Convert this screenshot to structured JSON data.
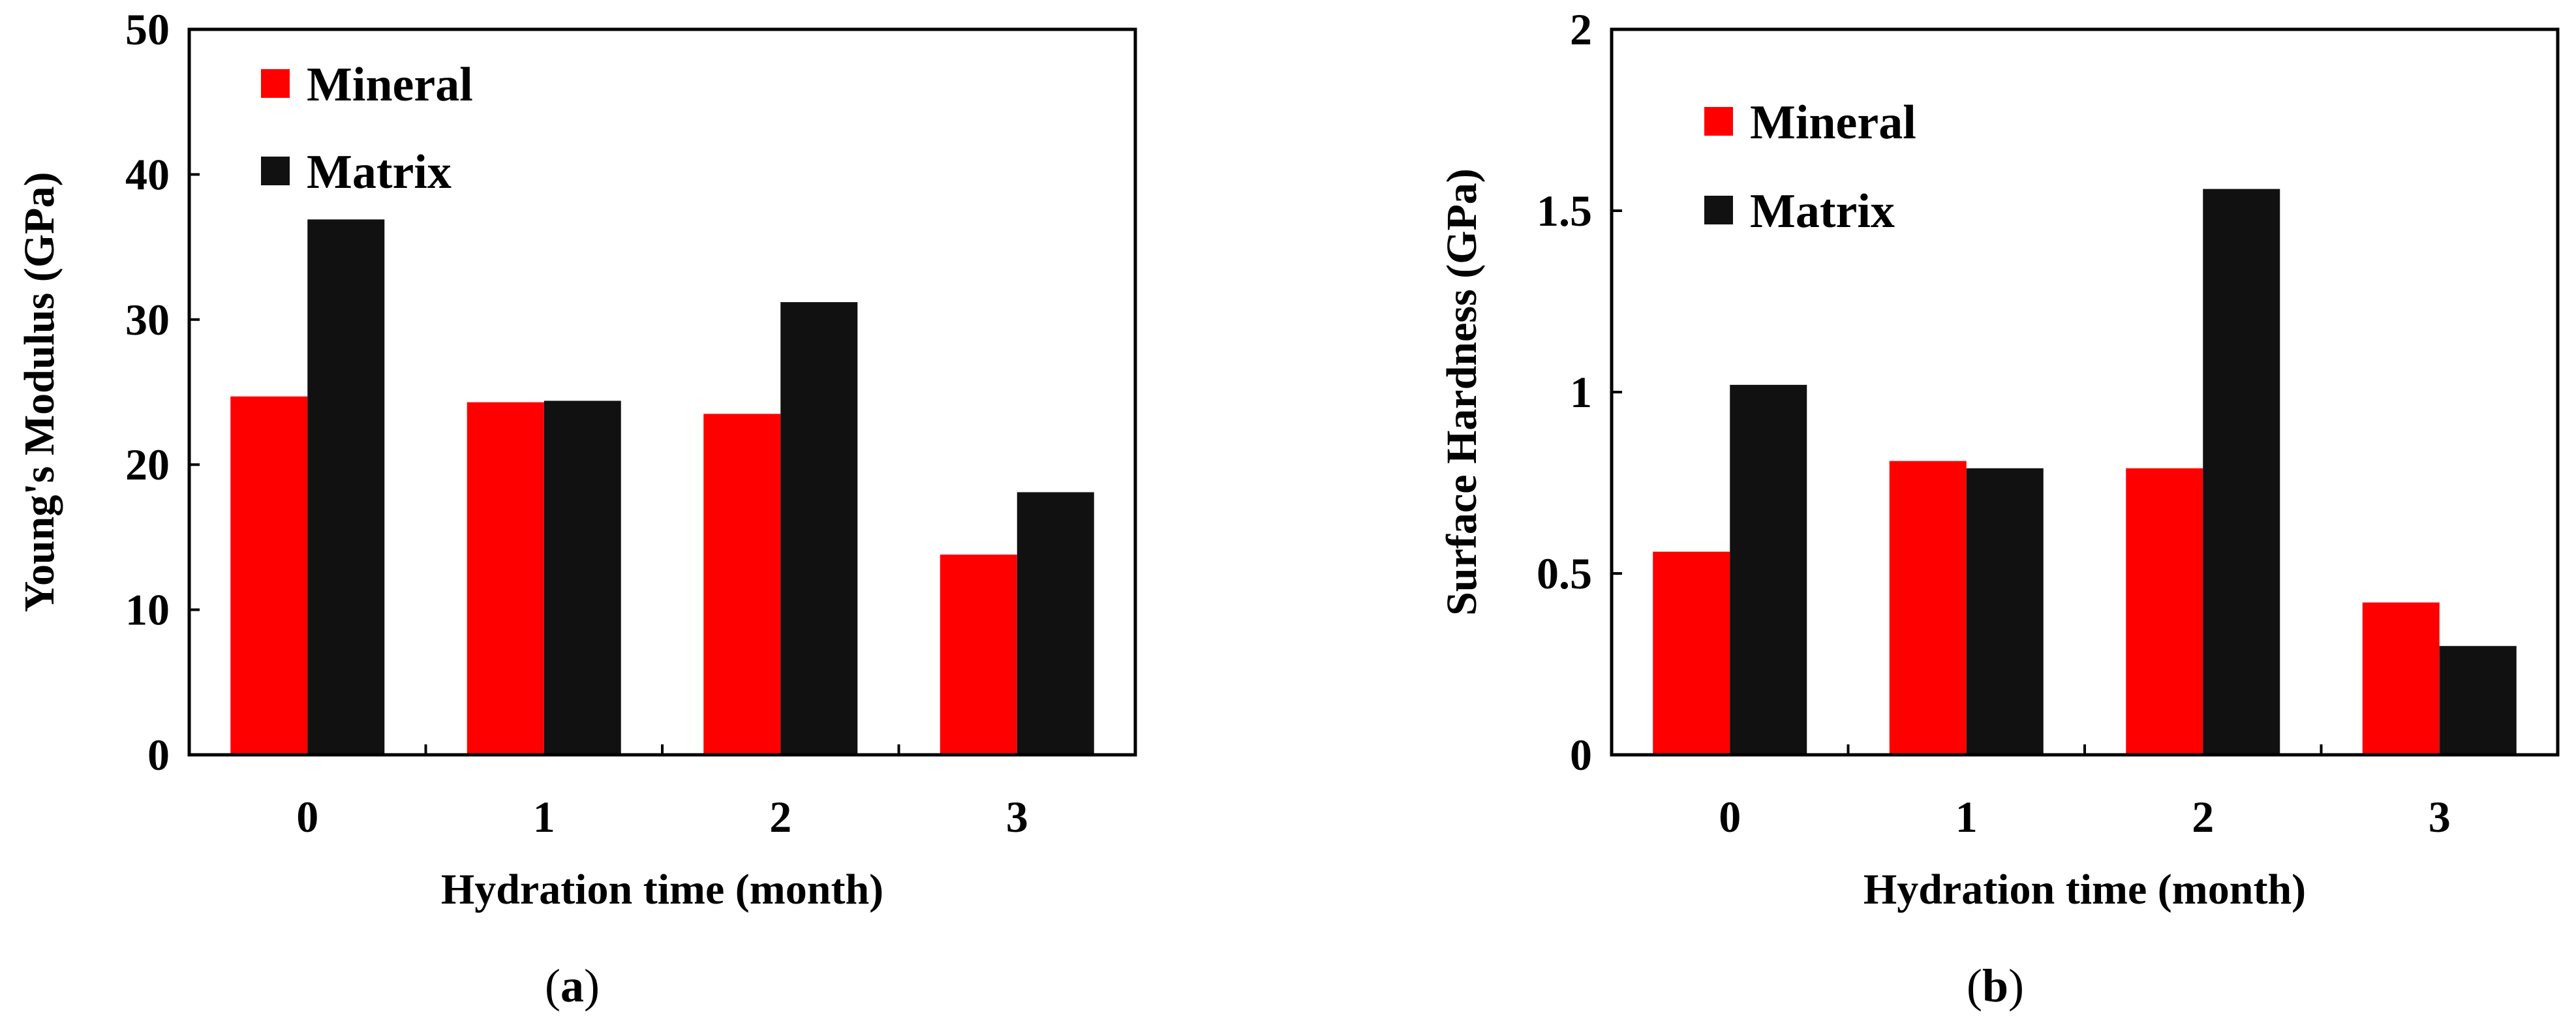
{
  "chart_data": [
    {
      "type": "bar",
      "panel_label": "a",
      "title": "",
      "xlabel": "Hydration time (month)",
      "ylabel": "Young's Modulus (GPa)",
      "categories": [
        "0",
        "1",
        "2",
        "3"
      ],
      "ylim": [
        0,
        50
      ],
      "yticks": [
        "0",
        "10",
        "20",
        "30",
        "40",
        "50"
      ],
      "ytick_values": [
        0,
        10,
        20,
        30,
        40,
        50
      ],
      "grid": false,
      "legend_position": "top-left",
      "series": [
        {
          "name": "Mineral",
          "color": "#ff0000",
          "values": [
            24.7,
            24.3,
            23.5,
            13.8
          ]
        },
        {
          "name": "Matrix",
          "color": "#111111",
          "values": [
            36.9,
            24.4,
            31.2,
            18.1
          ]
        }
      ]
    },
    {
      "type": "bar",
      "panel_label": "b",
      "title": "",
      "xlabel": "Hydration time (month)",
      "ylabel": "Surface Hardness (GPa)",
      "categories": [
        "0",
        "1",
        "2",
        "3"
      ],
      "ylim": [
        0,
        2
      ],
      "yticks": [
        "0",
        "0.5",
        "1",
        "1.5",
        "2"
      ],
      "ytick_values": [
        0,
        0.5,
        1,
        1.5,
        2
      ],
      "grid": false,
      "legend_position": "top-left",
      "series": [
        {
          "name": "Mineral",
          "color": "#ff0000",
          "values": [
            0.56,
            0.81,
            0.79,
            0.42
          ]
        },
        {
          "name": "Matrix",
          "color": "#111111",
          "values": [
            1.02,
            0.79,
            1.56,
            0.3
          ]
        }
      ]
    }
  ]
}
